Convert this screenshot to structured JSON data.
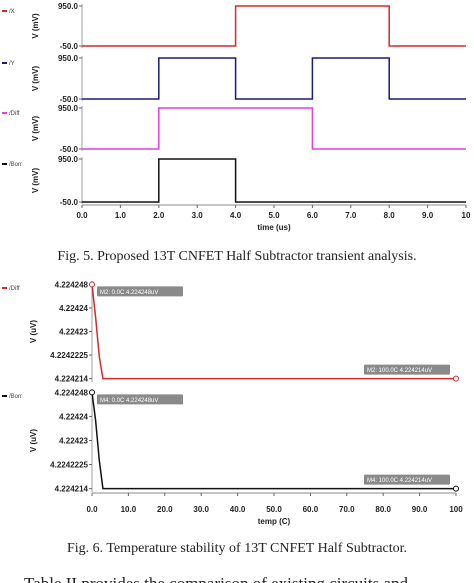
{
  "figures": [
    {
      "caption": "Fig. 5. Proposed 13T CNFET Half Subtractor transient analysis.",
      "x_label": "time (us)",
      "y_label": "V (mV)",
      "xlim": [
        0,
        10
      ],
      "xticks": [
        {
          "value": 0,
          "label": "0.0"
        },
        {
          "value": 1,
          "label": "1.0"
        },
        {
          "value": 2,
          "label": "2.0"
        },
        {
          "value": 3,
          "label": "3.0"
        },
        {
          "value": 4,
          "label": "4.0"
        },
        {
          "value": 5,
          "label": "5.0"
        },
        {
          "value": 6,
          "label": "6.0"
        },
        {
          "value": 7,
          "label": "7.0"
        },
        {
          "value": 8,
          "label": "8.0"
        },
        {
          "value": 9,
          "label": "9.0"
        },
        10
      ],
      "panels": [
        {
          "name": "/X",
          "color": "#d42a2a",
          "ylim": [
            -50,
            950
          ],
          "yticks": [
            {
              "value": -50,
              "label": "-50.0"
            },
            {
              "value": 950,
              "label": "950.0"
            }
          ],
          "x": [
            0,
            4,
            4,
            8,
            8,
            10
          ],
          "values": [
            -50,
            -50,
            950,
            950,
            -50,
            -50
          ]
        },
        {
          "name": "/Y",
          "color": "#1a1a7a",
          "ylim": [
            -50,
            950
          ],
          "yticks": [
            {
              "value": -50,
              "label": "-50.0"
            },
            {
              "value": 950,
              "label": "950.0"
            }
          ],
          "x": [
            0,
            2,
            2,
            4,
            4,
            6,
            6,
            8,
            8,
            10
          ],
          "values": [
            -50,
            -50,
            950,
            950,
            -50,
            -50,
            950,
            950,
            -50,
            -50
          ]
        },
        {
          "name": "/Diff",
          "color": "#e040e0",
          "ylim": [
            -50,
            950
          ],
          "yticks": [
            {
              "value": -50,
              "label": "-50.0"
            },
            {
              "value": 950,
              "label": "950.0"
            }
          ],
          "x": [
            0,
            2,
            2,
            6,
            6,
            10
          ],
          "values": [
            -50,
            -50,
            950,
            950,
            -50,
            -50
          ]
        },
        {
          "name": "/Borr",
          "color": "#111111",
          "ylim": [
            -50,
            950
          ],
          "yticks": [
            {
              "value": -50,
              "label": "-50.0"
            },
            {
              "value": 950,
              "label": "950.0"
            }
          ],
          "x": [
            0,
            2,
            2,
            4,
            4,
            10
          ],
          "values": [
            -50,
            -50,
            950,
            950,
            -50,
            -50
          ]
        }
      ]
    },
    {
      "caption": "Fig. 6. Temperature stability of 13T CNFET Half Subtractor.",
      "x_label": "temp (C)",
      "y_label": "V (uV)",
      "xlim": [
        0,
        100
      ],
      "xticks": [
        {
          "value": 0,
          "label": "0.0"
        },
        {
          "value": 10,
          "label": "10.0"
        },
        {
          "value": 20,
          "label": "20.0"
        },
        {
          "value": 30,
          "label": "30.0"
        },
        {
          "value": 40,
          "label": "40.0"
        },
        {
          "value": 50,
          "label": "50.0"
        },
        {
          "value": 60,
          "label": "60.0"
        },
        {
          "value": 70,
          "label": "70.0"
        },
        {
          "value": 80,
          "label": "80.0"
        },
        {
          "value": 90,
          "label": "90.0"
        },
        100
      ],
      "panels": [
        {
          "name": "/Diff",
          "color": "#d42a2a",
          "ylim": [
            4.2242135,
            4.2242485
          ],
          "yticks": [
            4.224248,
            {
              "value": 4.2242395,
              "label": "4.22424"
            },
            {
              "value": 4.224231,
              "label": "4.22423"
            },
            4.2242225,
            4.224214
          ],
          "x": [
            0,
            1,
            2,
            3,
            100
          ],
          "values": [
            4.224248,
            4.224236,
            4.224222,
            4.224214,
            4.224214
          ],
          "markers": [
            {
              "label": "M2: 0.0C 4.224248uV",
              "x": 0,
              "y": 4.224248
            },
            {
              "label": "M2: 100.0C 4.224214uV",
              "x": 100,
              "y": 4.224214
            }
          ]
        },
        {
          "name": "/Borr",
          "color": "#111111",
          "ylim": [
            4.2242135,
            4.2242485
          ],
          "yticks": [
            4.224248,
            {
              "value": 4.2242395,
              "label": "4.22424"
            },
            {
              "value": 4.224231,
              "label": "4.22423"
            },
            4.2242225,
            4.224214
          ],
          "x": [
            0,
            1,
            2,
            3,
            100
          ],
          "values": [
            4.224248,
            4.224238,
            4.224224,
            4.224214,
            4.224214
          ],
          "markers": [
            {
              "label": "M4: 0.0C 4.224248uV",
              "x": 0,
              "y": 4.224248
            },
            {
              "label": "M4: 100.0C 4.224214uV",
              "x": 100,
              "y": 4.224214
            }
          ]
        }
      ]
    }
  ],
  "body_text": "Table II provides the comparison of existing circuits and"
}
